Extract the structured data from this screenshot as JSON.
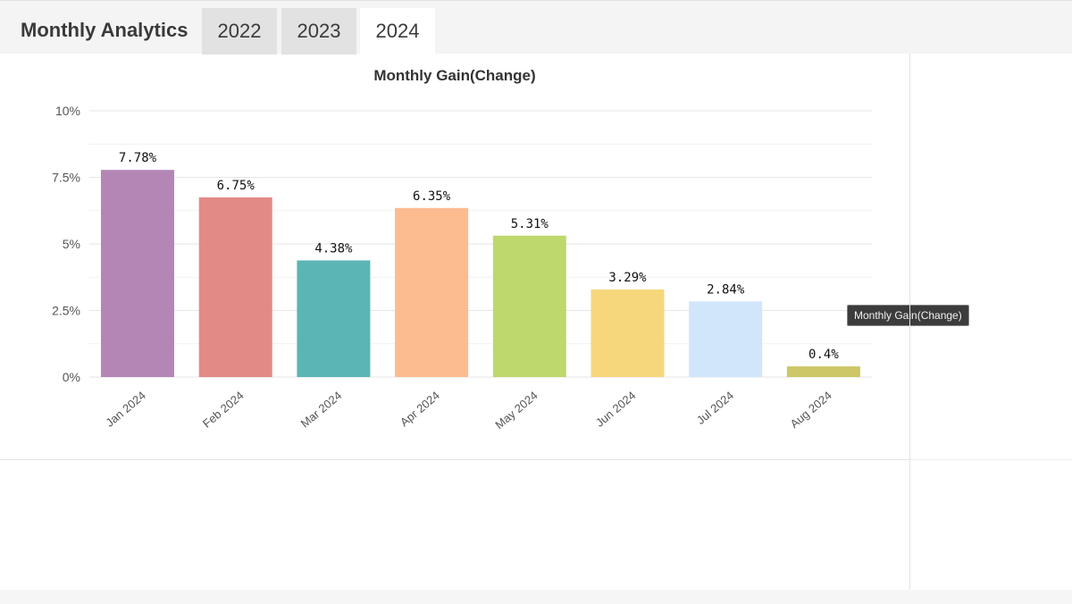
{
  "header": {
    "title": "Monthly Analytics",
    "tabs": [
      {
        "label": "2022",
        "active": false
      },
      {
        "label": "2023",
        "active": false
      },
      {
        "label": "2024",
        "active": true
      }
    ]
  },
  "tooltip": {
    "text": "Monthly Gain(Change)"
  },
  "chart_data": {
    "type": "bar",
    "title": "Monthly Gain(Change)",
    "categories": [
      "Jan 2024",
      "Feb 2024",
      "Mar 2024",
      "Apr 2024",
      "May 2024",
      "Jun 2024",
      "Jul 2024",
      "Aug 2024"
    ],
    "series": [
      {
        "values": [
          7.78,
          6.75,
          4.38,
          6.35,
          5.31,
          3.29,
          2.84,
          0.4
        ]
      }
    ],
    "data_labels": [
      "7.78%",
      "6.75%",
      "4.38%",
      "6.35%",
      "5.31%",
      "3.29%",
      "2.84%",
      "0.4%"
    ],
    "colors": [
      "#b386b6",
      "#e28a86",
      "#5bb5b4",
      "#fdbb90",
      "#bed86e",
      "#f6d77c",
      "#d1e6fb",
      "#cdc768"
    ],
    "ylim": [
      0,
      10
    ],
    "yticks": [
      0,
      2.5,
      5,
      7.5,
      10
    ],
    "ytick_labels": [
      "0%",
      "2.5%",
      "5%",
      "7.5%",
      "10%"
    ],
    "grid": true,
    "legend": "none"
  }
}
